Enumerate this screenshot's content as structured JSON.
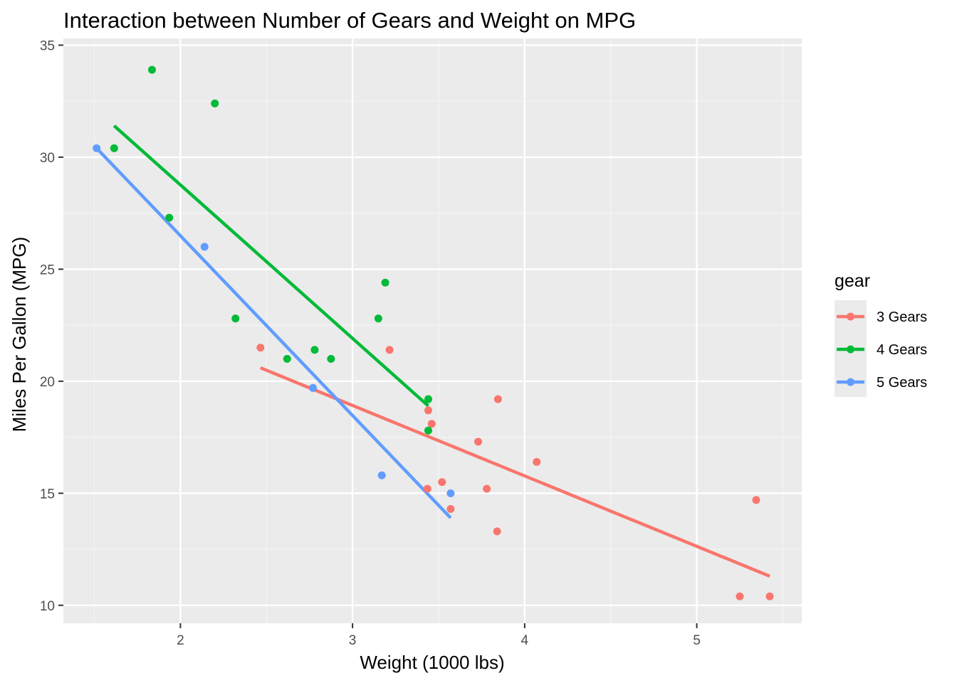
{
  "chart_data": {
    "type": "scatter",
    "title": "Interaction between Number of Gears and Weight on MPG",
    "xlabel": "Weight (1000 lbs)",
    "ylabel": "Miles Per Gallon (MPG)",
    "xlim": [
      1.32,
      5.61
    ],
    "ylim": [
      9.2,
      35.3
    ],
    "xticks": [
      2,
      3,
      4,
      5
    ],
    "xtick_labels": [
      "2",
      "3",
      "4",
      "5"
    ],
    "xminor": [
      1.5,
      2.5,
      3.5,
      4.5,
      5.5
    ],
    "yticks": [
      10,
      15,
      20,
      25,
      30,
      35
    ],
    "ytick_labels": [
      "10",
      "15",
      "20",
      "25",
      "30",
      "35"
    ],
    "yminor": [
      12.5,
      17.5,
      22.5,
      27.5,
      32.5
    ],
    "grid": true,
    "legend_title": "gear",
    "legend_position": "right",
    "series": [
      {
        "name": "3 Gears",
        "color": "#F8766D",
        "points": [
          [
            2.465,
            21.5
          ],
          [
            3.215,
            21.4
          ],
          [
            3.44,
            18.7
          ],
          [
            3.46,
            18.1
          ],
          [
            3.57,
            14.3
          ],
          [
            4.07,
            16.4
          ],
          [
            3.73,
            17.3
          ],
          [
            3.78,
            15.2
          ],
          [
            5.25,
            10.4
          ],
          [
            5.424,
            10.4
          ],
          [
            5.345,
            14.7
          ],
          [
            3.52,
            15.5
          ],
          [
            3.435,
            15.2
          ],
          [
            3.84,
            13.3
          ],
          [
            3.845,
            19.2
          ]
        ],
        "fit": [
          [
            2.465,
            20.6
          ],
          [
            5.424,
            11.3
          ]
        ]
      },
      {
        "name": "4 Gears",
        "color": "#00BA38",
        "points": [
          [
            2.62,
            21.0
          ],
          [
            2.875,
            21.0
          ],
          [
            2.32,
            22.8
          ],
          [
            3.19,
            24.4
          ],
          [
            3.15,
            22.8
          ],
          [
            3.44,
            19.2
          ],
          [
            3.44,
            17.8
          ],
          [
            2.2,
            32.4
          ],
          [
            1.615,
            30.4
          ],
          [
            1.835,
            33.9
          ],
          [
            1.935,
            27.3
          ],
          [
            2.78,
            21.4
          ]
        ],
        "fit": [
          [
            1.615,
            31.4
          ],
          [
            3.44,
            18.9
          ]
        ]
      },
      {
        "name": "5 Gears",
        "color": "#619CFF",
        "points": [
          [
            2.14,
            26.0
          ],
          [
            1.513,
            30.4
          ],
          [
            3.17,
            15.8
          ],
          [
            2.77,
            19.7
          ],
          [
            3.57,
            15.0
          ]
        ],
        "fit": [
          [
            1.513,
            30.4
          ],
          [
            3.57,
            13.9
          ]
        ]
      }
    ]
  }
}
